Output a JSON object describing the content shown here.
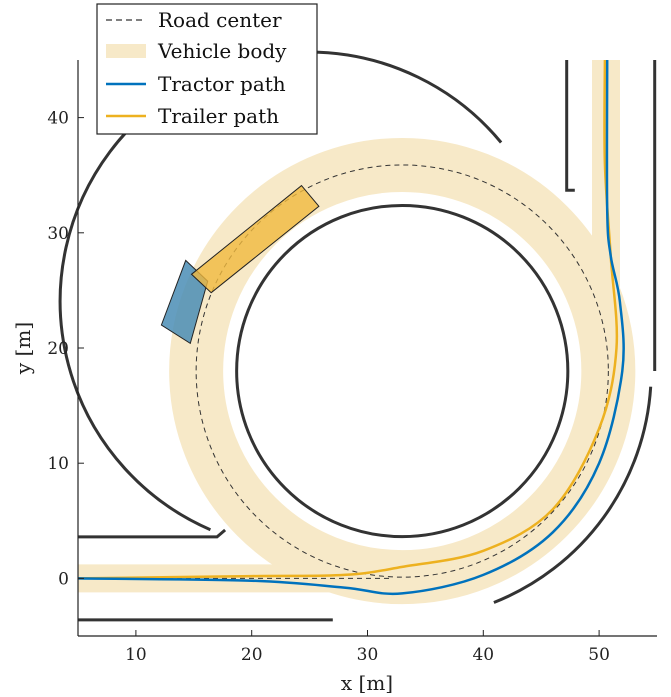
{
  "chart_data": {
    "type": "line",
    "title": "",
    "xlabel": "x [m]",
    "ylabel": "y [m]",
    "xlim": [
      5,
      55
    ],
    "ylim": [
      -5,
      45
    ],
    "xticks": [
      10,
      20,
      30,
      40,
      50
    ],
    "yticks": [
      0,
      10,
      20,
      30,
      40
    ],
    "grid": false,
    "legend": {
      "placement": "top-left",
      "entries": [
        {
          "label": "Road center",
          "color": "#333333",
          "style": "dashed"
        },
        {
          "label": "Vehicle body",
          "color": "#f7e9c8",
          "style": "band"
        },
        {
          "label": "Tractor path",
          "color": "#0072bd",
          "style": "solid"
        },
        {
          "label": "Trailer path",
          "color": "#edb120",
          "style": "solid"
        }
      ]
    },
    "roundabout": {
      "center": [
        33,
        18
      ],
      "inner_radius": 14.3,
      "outer_radius": 21.5,
      "center_radius": 17.8
    },
    "road_edges": {
      "top_entry": [
        [
          5,
          3.6
        ],
        [
          17,
          3.6
        ],
        [
          17.7,
          4.2
        ]
      ],
      "bottom_exit": [
        [
          5,
          -3.6
        ],
        [
          27,
          -3.6
        ]
      ],
      "upper_right": [
        [
          47.2,
          45
        ],
        [
          47.2,
          33.7
        ],
        [
          47.9,
          33.7
        ]
      ],
      "right_outer": [
        [
          54.8,
          45
        ],
        [
          54.8,
          18
        ]
      ]
    },
    "road_center": [
      [
        5,
        0
      ],
      [
        32,
        0
      ]
    ],
    "tractor_path": {
      "color": "#0072bd",
      "points": [
        [
          5,
          0
        ],
        [
          20,
          -0.2
        ],
        [
          28,
          -0.8
        ],
        [
          33,
          -1.3
        ],
        [
          40,
          0.3
        ],
        [
          46,
          4
        ],
        [
          50,
          10
        ],
        [
          52,
          18
        ],
        [
          51.8,
          24
        ],
        [
          51,
          28
        ],
        [
          50.7,
          32
        ],
        [
          50.7,
          45
        ]
      ]
    },
    "trailer_path": {
      "color": "#edb120",
      "points": [
        [
          5,
          0
        ],
        [
          20,
          0.2
        ],
        [
          28,
          0.3
        ],
        [
          33,
          1
        ],
        [
          40,
          2.4
        ],
        [
          46,
          6
        ],
        [
          50,
          13
        ],
        [
          51.5,
          20
        ],
        [
          51,
          28
        ],
        [
          50.5,
          36
        ],
        [
          50.5,
          45
        ]
      ]
    },
    "vehicle": {
      "tractor": {
        "color": "#4a8db5",
        "corners": [
          [
            12.2,
            22
          ],
          [
            14.3,
            27.6
          ],
          [
            16.2,
            25.8
          ],
          [
            14.7,
            20.4
          ]
        ]
      },
      "trailer": {
        "color": "#f0b93e",
        "corners": [
          [
            14.8,
            26.4
          ],
          [
            24.3,
            34.1
          ],
          [
            25.8,
            32.3
          ],
          [
            16.5,
            24.8
          ]
        ]
      }
    }
  }
}
